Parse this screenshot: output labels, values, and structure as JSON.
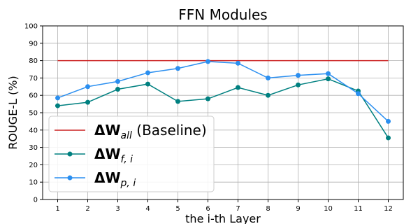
{
  "chart_data": {
    "type": "line",
    "title": "FFN Modules",
    "xlabel": "the i-th Layer",
    "ylabel": "ROUGE-L (%)",
    "x": [
      1,
      2,
      3,
      4,
      5,
      6,
      7,
      8,
      9,
      10,
      11,
      12
    ],
    "xlim": [
      0.5,
      12.5
    ],
    "ylim": [
      0,
      100
    ],
    "yticks": [
      0,
      10,
      20,
      30,
      40,
      50,
      60,
      70,
      80,
      90,
      100
    ],
    "grid": true,
    "legend_position": "lower-left",
    "series": [
      {
        "name": "ΔW_all (Baseline)",
        "legend_main": "ΔW",
        "legend_sub": "all",
        "legend_suffix": " (Baseline)",
        "color": "#cc2222",
        "marker": false,
        "values": [
          80,
          80,
          80,
          80,
          80,
          80,
          80,
          80,
          80,
          80,
          80,
          80
        ]
      },
      {
        "name": "ΔW_f,i",
        "legend_main": "ΔW",
        "legend_sub": "f, i",
        "legend_suffix": "",
        "color": "#008080",
        "marker": true,
        "values": [
          54,
          56,
          63.5,
          66.5,
          56.5,
          58,
          64.5,
          60,
          66,
          69.5,
          62.5,
          35.5
        ]
      },
      {
        "name": "ΔW_p,i",
        "legend_main": "ΔW",
        "legend_sub": "p, i",
        "legend_suffix": "",
        "color": "#2b8ff0",
        "marker": true,
        "values": [
          58.5,
          65,
          68,
          73,
          75.5,
          79.5,
          78.5,
          70,
          71.5,
          72.5,
          61,
          45
        ]
      }
    ]
  }
}
